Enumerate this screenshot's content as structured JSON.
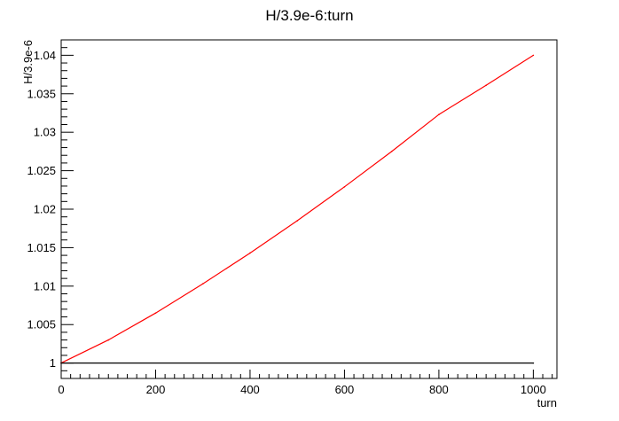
{
  "chart_data": {
    "type": "line",
    "title": "H/3.9e-6:turn",
    "xlabel": "turn",
    "ylabel": "H/3.9e-6",
    "xlim": [
      0,
      1050
    ],
    "ylim": [
      0.998,
      1.042
    ],
    "grid": false,
    "x_ticks": [
      "0",
      "200",
      "400",
      "600",
      "800",
      "1000"
    ],
    "y_ticks": [
      "1",
      "1.005",
      "1.01",
      "1.015",
      "1.02",
      "1.025",
      "1.03",
      "1.035",
      "1.04"
    ],
    "series": [
      {
        "color": "#ff0000",
        "x": [
          0,
          100,
          200,
          300,
          400,
          500,
          600,
          700,
          800,
          900,
          1000
        ],
        "values": [
          1.0,
          1.003,
          1.0065,
          1.0103,
          1.0143,
          1.0185,
          1.0229,
          1.0275,
          1.0323,
          1.0361,
          1.04
        ]
      },
      {
        "color": "#000000",
        "x": [
          0,
          1000
        ],
        "values": [
          1.0,
          1.0
        ]
      }
    ]
  }
}
